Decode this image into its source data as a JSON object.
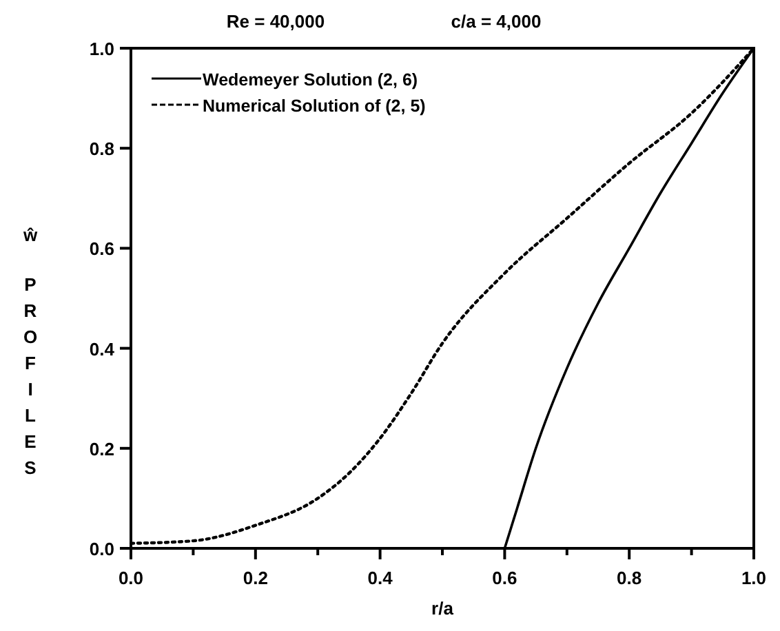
{
  "chart_data": {
    "type": "line",
    "title": "Re = 40,000",
    "subtitle": "c/a = 4,000",
    "xlabel": "r/a",
    "ylabel": "ŵ PROFILES",
    "xlim": [
      0,
      1
    ],
    "ylim": [
      0,
      1
    ],
    "xticks": [
      {
        "value": 0,
        "label": "0.0"
      },
      {
        "value": 0.1,
        "label": null
      },
      {
        "value": 0.2,
        "label": "0.2"
      },
      {
        "value": 0.3,
        "label": null
      },
      {
        "value": 0.4,
        "label": "0.4"
      },
      {
        "value": 0.5,
        "label": null
      },
      {
        "value": 0.6,
        "label": "0.6"
      },
      {
        "value": 0.7,
        "label": null
      },
      {
        "value": 0.8,
        "label": "0.8"
      },
      {
        "value": 0.9,
        "label": null
      },
      {
        "value": 1,
        "label": "1.0"
      }
    ],
    "yticks": [
      {
        "value": 0,
        "label": "0.0"
      },
      {
        "value": 0.2,
        "label": "0.2"
      },
      {
        "value": 0.4,
        "label": "0.4"
      },
      {
        "value": 0.6,
        "label": "0.6"
      },
      {
        "value": 0.8,
        "label": "0.8"
      },
      {
        "value": 1,
        "label": "1.0"
      }
    ],
    "grid": false,
    "legend": "top left",
    "marker": "none",
    "series": [
      {
        "name": "Wedemeyer Solution (2, 6)",
        "color": "#000000",
        "line_style": "solid",
        "x": [
          0.6,
          0.62,
          0.65,
          0.7,
          0.75,
          0.8,
          0.85,
          0.9,
          0.95,
          1.0
        ],
        "values": [
          0,
          0.08,
          0.2,
          0.36,
          0.49,
          0.6,
          0.71,
          0.81,
          0.91,
          1.0
        ]
      },
      {
        "name": "Numerical Solution of (2, 5)",
        "color": "#000000",
        "line_style": "dotted",
        "x": [
          0,
          0.1,
          0.2,
          0.3,
          0.35,
          0.4,
          0.45,
          0.5,
          0.6,
          0.7,
          0.8,
          0.9,
          1.0
        ],
        "values": [
          0.01,
          0.015,
          0.046,
          0.1,
          0.15,
          0.22,
          0.31,
          0.41,
          0.55,
          0.66,
          0.77,
          0.87,
          1.0
        ]
      }
    ]
  }
}
